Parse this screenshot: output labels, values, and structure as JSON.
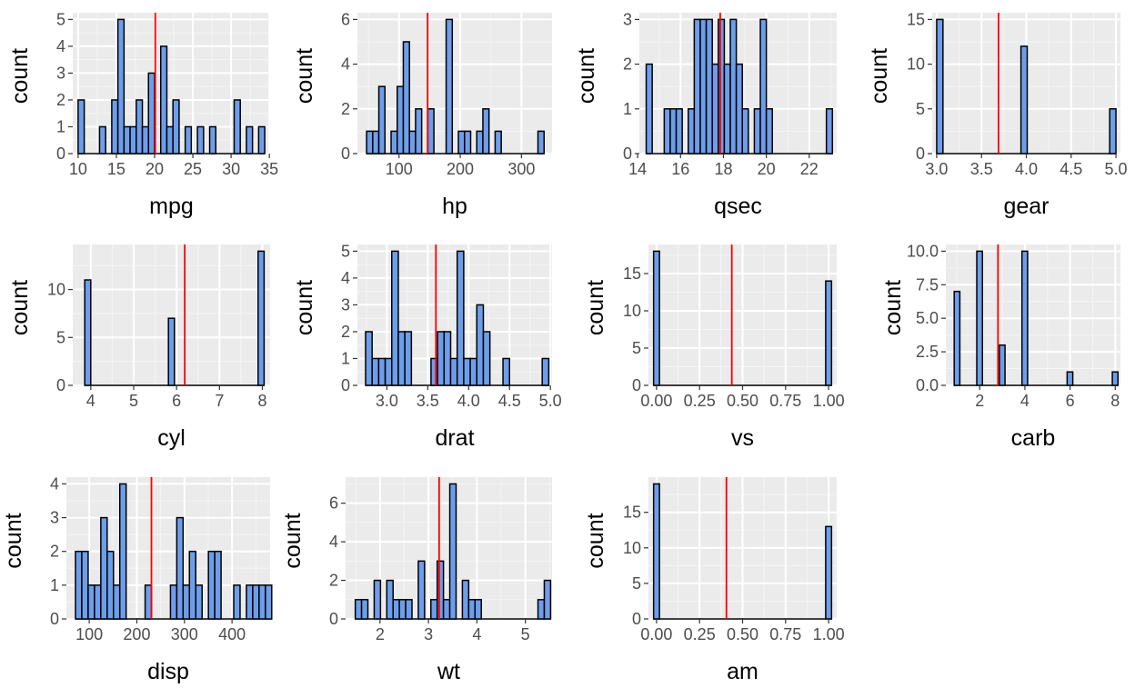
{
  "chart_data": [
    {
      "type": "bar",
      "title": "",
      "xlabel": "mpg",
      "ylabel": "count",
      "xlim": [
        9.3,
        35.1
      ],
      "ylim": [
        0,
        5.25
      ],
      "xticks": [
        10,
        15,
        20,
        25,
        30,
        35
      ],
      "yticks": [
        0,
        1,
        2,
        3,
        4,
        5
      ],
      "mean_line": 20.09,
      "grid": true,
      "bins": [
        {
          "x0": 10.0,
          "x1": 10.8,
          "count": 2
        },
        {
          "x0": 12.8,
          "x1": 13.6,
          "count": 1
        },
        {
          "x0": 14.4,
          "x1": 15.2,
          "count": 2
        },
        {
          "x0": 15.2,
          "x1": 16.0,
          "count": 5
        },
        {
          "x0": 16.0,
          "x1": 16.8,
          "count": 1
        },
        {
          "x0": 16.8,
          "x1": 17.6,
          "count": 1
        },
        {
          "x0": 17.6,
          "x1": 18.4,
          "count": 2
        },
        {
          "x0": 18.4,
          "x1": 19.2,
          "count": 1
        },
        {
          "x0": 19.2,
          "x1": 20.0,
          "count": 3
        },
        {
          "x0": 20.8,
          "x1": 21.6,
          "count": 4
        },
        {
          "x0": 21.6,
          "x1": 22.4,
          "count": 1
        },
        {
          "x0": 22.4,
          "x1": 23.2,
          "count": 2
        },
        {
          "x0": 24.0,
          "x1": 24.8,
          "count": 1
        },
        {
          "x0": 25.6,
          "x1": 26.4,
          "count": 1
        },
        {
          "x0": 27.2,
          "x1": 28.0,
          "count": 1
        },
        {
          "x0": 30.4,
          "x1": 31.2,
          "count": 2
        },
        {
          "x0": 32.0,
          "x1": 32.8,
          "count": 1
        },
        {
          "x0": 33.6,
          "x1": 34.4,
          "count": 1
        }
      ]
    },
    {
      "type": "bar",
      "title": "",
      "xlabel": "hp",
      "ylabel": "count",
      "xlim": [
        32,
        350
      ],
      "ylim": [
        0,
        6.3
      ],
      "xticks": [
        100,
        200,
        300
      ],
      "yticks": [
        0,
        2,
        4,
        6
      ],
      "mean_line": 146.7,
      "grid": true,
      "bins": [
        {
          "x0": 47,
          "x1": 57,
          "count": 1
        },
        {
          "x0": 57,
          "x1": 67,
          "count": 1
        },
        {
          "x0": 67,
          "x1": 77,
          "count": 3
        },
        {
          "x0": 87,
          "x1": 97,
          "count": 1
        },
        {
          "x0": 97,
          "x1": 107,
          "count": 3
        },
        {
          "x0": 107,
          "x1": 117,
          "count": 5
        },
        {
          "x0": 117,
          "x1": 127,
          "count": 1
        },
        {
          "x0": 127,
          "x1": 137,
          "count": 2
        },
        {
          "x0": 147,
          "x1": 157,
          "count": 2
        },
        {
          "x0": 177,
          "x1": 187,
          "count": 6
        },
        {
          "x0": 197,
          "x1": 207,
          "count": 1
        },
        {
          "x0": 207,
          "x1": 217,
          "count": 1
        },
        {
          "x0": 227,
          "x1": 237,
          "count": 1
        },
        {
          "x0": 237,
          "x1": 247,
          "count": 2
        },
        {
          "x0": 257,
          "x1": 267,
          "count": 1
        },
        {
          "x0": 327,
          "x1": 337,
          "count": 1
        }
      ]
    },
    {
      "type": "bar",
      "title": "",
      "xlabel": "qsec",
      "ylabel": "count",
      "xlim": [
        14.08,
        23.28
      ],
      "ylim": [
        0,
        3.15
      ],
      "xticks": [
        14,
        16,
        18,
        20,
        22
      ],
      "yticks": [
        0,
        1,
        2,
        3
      ],
      "mean_line": 17.85,
      "grid": true,
      "bins": [
        {
          "x0": 14.4,
          "x1": 14.68,
          "count": 2
        },
        {
          "x0": 15.24,
          "x1": 15.52,
          "count": 1
        },
        {
          "x0": 15.52,
          "x1": 15.8,
          "count": 1
        },
        {
          "x0": 15.8,
          "x1": 16.08,
          "count": 1
        },
        {
          "x0": 16.36,
          "x1": 16.64,
          "count": 1
        },
        {
          "x0": 16.64,
          "x1": 16.92,
          "count": 3
        },
        {
          "x0": 16.92,
          "x1": 17.2,
          "count": 3
        },
        {
          "x0": 17.2,
          "x1": 17.48,
          "count": 3
        },
        {
          "x0": 17.48,
          "x1": 17.76,
          "count": 2
        },
        {
          "x0": 17.76,
          "x1": 18.04,
          "count": 3
        },
        {
          "x0": 18.04,
          "x1": 18.32,
          "count": 2
        },
        {
          "x0": 18.32,
          "x1": 18.6,
          "count": 3
        },
        {
          "x0": 18.6,
          "x1": 18.88,
          "count": 2
        },
        {
          "x0": 18.88,
          "x1": 19.16,
          "count": 1
        },
        {
          "x0": 19.44,
          "x1": 19.72,
          "count": 1
        },
        {
          "x0": 19.72,
          "x1": 20.0,
          "count": 3
        },
        {
          "x0": 20.0,
          "x1": 20.28,
          "count": 1
        },
        {
          "x0": 22.8,
          "x1": 23.08,
          "count": 1
        }
      ]
    },
    {
      "type": "bar",
      "title": "",
      "xlabel": "gear",
      "ylabel": "count",
      "xlim": [
        2.95,
        5.05
      ],
      "ylim": [
        0,
        15.75
      ],
      "xticks": [
        3.0,
        3.5,
        4.0,
        4.5,
        5.0
      ],
      "xtick_labels": [
        "3.0",
        "3.5",
        "4.0",
        "4.5",
        "5.0"
      ],
      "yticks": [
        0,
        5,
        10,
        15
      ],
      "mean_line": 3.69,
      "grid": true,
      "bins": [
        {
          "x0": 3.0,
          "x1": 3.07,
          "count": 15
        },
        {
          "x0": 3.94,
          "x1": 4.01,
          "count": 12
        },
        {
          "x0": 4.93,
          "x1": 5.0,
          "count": 5
        }
      ]
    },
    {
      "type": "bar",
      "title": "",
      "xlabel": "cyl",
      "ylabel": "count",
      "xlim": [
        3.58,
        8.18
      ],
      "ylim": [
        0,
        14.7
      ],
      "xticks": [
        4,
        5,
        6,
        7,
        8
      ],
      "yticks": [
        0,
        5,
        10
      ],
      "mean_line": 6.19,
      "grid": true,
      "bins": [
        {
          "x0": 3.86,
          "x1": 4.0,
          "count": 11
        },
        {
          "x0": 5.81,
          "x1": 5.95,
          "count": 7
        },
        {
          "x0": 7.9,
          "x1": 8.04,
          "count": 14
        }
      ]
    },
    {
      "type": "bar",
      "title": "",
      "xlabel": "drat",
      "ylabel": "count",
      "xlim": [
        2.64,
        5.02
      ],
      "ylim": [
        0,
        5.25
      ],
      "xticks": [
        3.0,
        3.5,
        4.0,
        4.5,
        5.0
      ],
      "xtick_labels": [
        "3.0",
        "3.5",
        "4.0",
        "4.5",
        "5.0"
      ],
      "yticks": [
        0,
        1,
        2,
        3,
        4,
        5
      ],
      "mean_line": 3.6,
      "grid": true,
      "bins": [
        {
          "x0": 2.74,
          "x1": 2.82,
          "count": 2
        },
        {
          "x0": 2.82,
          "x1": 2.9,
          "count": 1
        },
        {
          "x0": 2.9,
          "x1": 2.98,
          "count": 1
        },
        {
          "x0": 2.98,
          "x1": 3.06,
          "count": 1
        },
        {
          "x0": 3.06,
          "x1": 3.14,
          "count": 5
        },
        {
          "x0": 3.14,
          "x1": 3.22,
          "count": 2
        },
        {
          "x0": 3.22,
          "x1": 3.3,
          "count": 2
        },
        {
          "x0": 3.54,
          "x1": 3.62,
          "count": 1
        },
        {
          "x0": 3.62,
          "x1": 3.7,
          "count": 2
        },
        {
          "x0": 3.7,
          "x1": 3.78,
          "count": 2
        },
        {
          "x0": 3.78,
          "x1": 3.86,
          "count": 1
        },
        {
          "x0": 3.86,
          "x1": 3.94,
          "count": 5
        },
        {
          "x0": 3.94,
          "x1": 4.02,
          "count": 1
        },
        {
          "x0": 4.02,
          "x1": 4.1,
          "count": 1
        },
        {
          "x0": 4.1,
          "x1": 4.18,
          "count": 3
        },
        {
          "x0": 4.18,
          "x1": 4.26,
          "count": 2
        },
        {
          "x0": 4.42,
          "x1": 4.5,
          "count": 1
        },
        {
          "x0": 4.9,
          "x1": 4.98,
          "count": 1
        }
      ]
    },
    {
      "type": "bar",
      "title": "",
      "xlabel": "vs",
      "ylabel": "count",
      "xlim": [
        -0.047,
        1.047
      ],
      "ylim": [
        0,
        18.9
      ],
      "xticks": [
        0.0,
        0.25,
        0.5,
        0.75,
        1.0
      ],
      "xtick_labels": [
        "0.00",
        "0.25",
        "0.50",
        "0.75",
        "1.00"
      ],
      "yticks": [
        0,
        5,
        10,
        15
      ],
      "mean_line": 0.4375,
      "grid": true,
      "bins": [
        {
          "x0": -0.017,
          "x1": 0.017,
          "count": 18
        },
        {
          "x0": 0.983,
          "x1": 1.017,
          "count": 14
        }
      ]
    },
    {
      "type": "bar",
      "title": "",
      "xlabel": "carb",
      "ylabel": "count",
      "xlim": [
        0.5,
        8.23
      ],
      "ylim": [
        0,
        10.5
      ],
      "xticks": [
        2,
        4,
        6,
        8
      ],
      "yticks": [
        0,
        2.5,
        5,
        7.5,
        10
      ],
      "ytick_labels": [
        "0.0",
        "2.5",
        "5.0",
        "7.5",
        "10.0"
      ],
      "mean_line": 2.81,
      "grid": true,
      "bins": [
        {
          "x0": 0.87,
          "x1": 1.12,
          "count": 7
        },
        {
          "x0": 1.87,
          "x1": 2.12,
          "count": 10
        },
        {
          "x0": 2.87,
          "x1": 3.12,
          "count": 3
        },
        {
          "x0": 3.87,
          "x1": 4.12,
          "count": 10
        },
        {
          "x0": 5.87,
          "x1": 6.12,
          "count": 1
        },
        {
          "x0": 7.87,
          "x1": 8.12,
          "count": 1
        }
      ]
    },
    {
      "type": "bar",
      "title": "",
      "xlabel": "disp",
      "ylabel": "count",
      "xlim": [
        52,
        480
      ],
      "ylim": [
        0,
        4.2
      ],
      "xticks": [
        100,
        200,
        300,
        400
      ],
      "yticks": [
        0,
        1,
        2,
        3,
        4
      ],
      "mean_line": 230.7,
      "grid": true,
      "bins": [
        {
          "x0": 71.1,
          "x1": 84.4,
          "count": 2
        },
        {
          "x0": 84.4,
          "x1": 97.7,
          "count": 2
        },
        {
          "x0": 97.7,
          "x1": 111.0,
          "count": 1
        },
        {
          "x0": 111.0,
          "x1": 124.3,
          "count": 1
        },
        {
          "x0": 124.3,
          "x1": 137.6,
          "count": 3
        },
        {
          "x0": 137.6,
          "x1": 150.9,
          "count": 2
        },
        {
          "x0": 150.9,
          "x1": 164.2,
          "count": 1
        },
        {
          "x0": 164.2,
          "x1": 177.5,
          "count": 4
        },
        {
          "x0": 217.4,
          "x1": 230.7,
          "count": 1
        },
        {
          "x0": 270.6,
          "x1": 283.9,
          "count": 1
        },
        {
          "x0": 283.9,
          "x1": 297.2,
          "count": 3
        },
        {
          "x0": 297.2,
          "x1": 310.5,
          "count": 1
        },
        {
          "x0": 310.5,
          "x1": 323.8,
          "count": 2
        },
        {
          "x0": 323.8,
          "x1": 337.1,
          "count": 1
        },
        {
          "x0": 350.4,
          "x1": 363.7,
          "count": 2
        },
        {
          "x0": 363.7,
          "x1": 377.0,
          "count": 2
        },
        {
          "x0": 403.6,
          "x1": 416.9,
          "count": 1
        },
        {
          "x0": 430.2,
          "x1": 443.5,
          "count": 1
        },
        {
          "x0": 443.5,
          "x1": 456.8,
          "count": 1
        },
        {
          "x0": 456.8,
          "x1": 470.1,
          "count": 1
        },
        {
          "x0": 470.1,
          "x1": 483.4,
          "count": 1
        }
      ]
    },
    {
      "type": "bar",
      "title": "",
      "xlabel": "wt",
      "ylabel": "count",
      "xlim": [
        1.29,
        5.55
      ],
      "ylim": [
        0,
        7.35
      ],
      "xticks": [
        2,
        3,
        4,
        5
      ],
      "yticks": [
        0,
        2,
        4,
        6
      ],
      "mean_line": 3.22,
      "grid": true,
      "bins": [
        {
          "x0": 1.49,
          "x1": 1.62,
          "count": 1
        },
        {
          "x0": 1.62,
          "x1": 1.75,
          "count": 1
        },
        {
          "x0": 1.88,
          "x1": 2.01,
          "count": 2
        },
        {
          "x0": 2.14,
          "x1": 2.27,
          "count": 2
        },
        {
          "x0": 2.27,
          "x1": 2.4,
          "count": 1
        },
        {
          "x0": 2.4,
          "x1": 2.53,
          "count": 1
        },
        {
          "x0": 2.53,
          "x1": 2.66,
          "count": 1
        },
        {
          "x0": 2.79,
          "x1": 2.92,
          "count": 3
        },
        {
          "x0": 3.05,
          "x1": 3.18,
          "count": 1
        },
        {
          "x0": 3.18,
          "x1": 3.31,
          "count": 3
        },
        {
          "x0": 3.31,
          "x1": 3.44,
          "count": 1
        },
        {
          "x0": 3.44,
          "x1": 3.57,
          "count": 7
        },
        {
          "x0": 3.7,
          "x1": 3.83,
          "count": 2
        },
        {
          "x0": 3.83,
          "x1": 3.96,
          "count": 1
        },
        {
          "x0": 3.96,
          "x1": 4.09,
          "count": 1
        },
        {
          "x0": 5.26,
          "x1": 5.39,
          "count": 1
        },
        {
          "x0": 5.39,
          "x1": 5.52,
          "count": 2
        }
      ]
    },
    {
      "type": "bar",
      "title": "",
      "xlabel": "am",
      "ylabel": "count",
      "xlim": [
        -0.047,
        1.047
      ],
      "ylim": [
        0,
        19.95
      ],
      "xticks": [
        0.0,
        0.25,
        0.5,
        0.75,
        1.0
      ],
      "xtick_labels": [
        "0.00",
        "0.25",
        "0.50",
        "0.75",
        "1.00"
      ],
      "yticks": [
        0,
        5,
        10,
        15
      ],
      "mean_line": 0.40625,
      "grid": true,
      "bins": [
        {
          "x0": -0.017,
          "x1": 0.017,
          "count": 19
        },
        {
          "x0": 0.983,
          "x1": 1.017,
          "count": 13
        }
      ]
    }
  ],
  "colors": {
    "panel_background": "#ebebeb",
    "grid_major": "#ffffff",
    "grid_minor": "#f5f5f5",
    "bar_fill": "#6d9eeb",
    "bar_outline": "#000000",
    "mean_line": "#ff0000"
  }
}
